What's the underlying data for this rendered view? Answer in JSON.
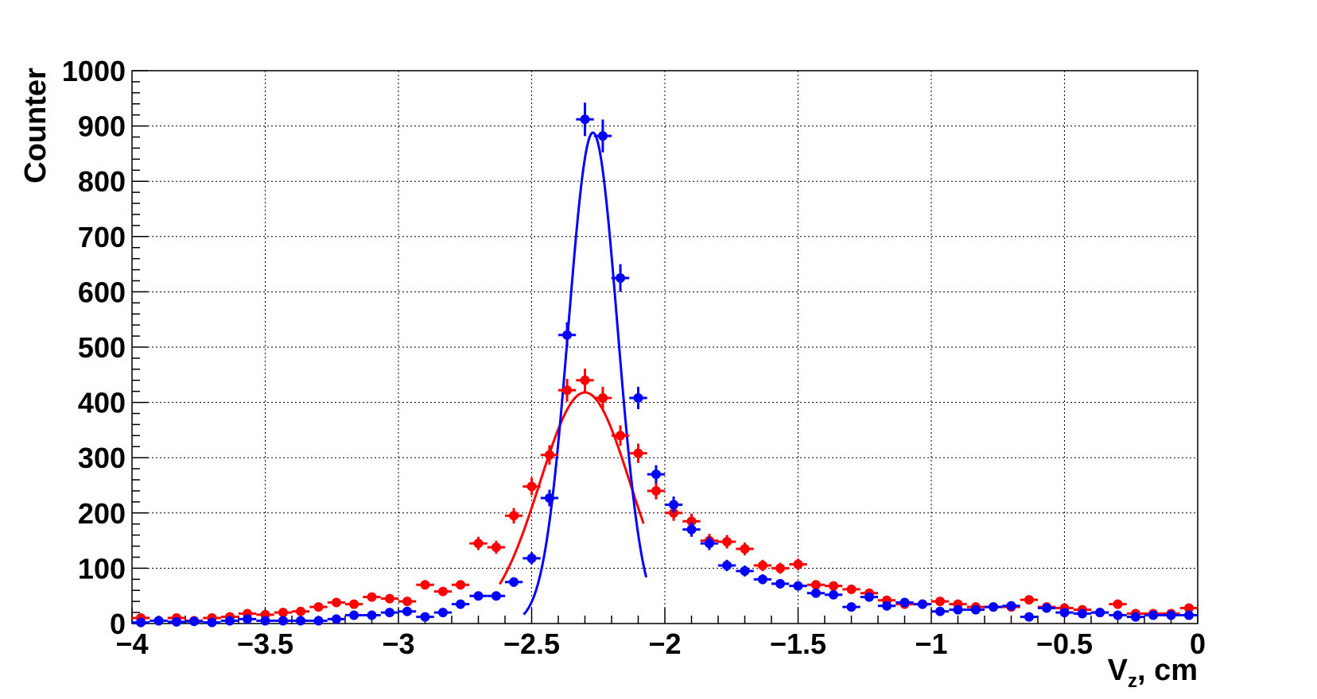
{
  "chart_data": {
    "type": "scatter",
    "title": "",
    "xlabel_main": "V",
    "xlabel_sub": "z",
    "xlabel_rest": ", cm",
    "ylabel": "Counter",
    "xlim": [
      -4,
      0
    ],
    "ylim": [
      0,
      1000
    ],
    "grid": true,
    "x_ticks": [
      -4,
      -3.5,
      -3,
      -2.5,
      -2,
      -1.5,
      -1,
      -0.5,
      0
    ],
    "x_tick_labels": [
      "−4",
      "−3.5",
      "−3",
      "−2.5",
      "−2",
      "−1.5",
      "−1",
      "−0.5",
      "0"
    ],
    "y_ticks": [
      0,
      100,
      200,
      300,
      400,
      500,
      600,
      700,
      800,
      900,
      1000
    ],
    "y_tick_labels": [
      "0",
      "100",
      "200",
      "300",
      "400",
      "500",
      "600",
      "700",
      "800",
      "900",
      "1000"
    ],
    "bin_width": 0.0667,
    "series": [
      {
        "color": "#ff0000",
        "x": [
          -3.967,
          -3.9,
          -3.833,
          -3.767,
          -3.7,
          -3.633,
          -3.567,
          -3.5,
          -3.433,
          -3.367,
          -3.3,
          -3.233,
          -3.167,
          -3.1,
          -3.033,
          -2.967,
          -2.9,
          -2.833,
          -2.767,
          -2.7,
          -2.633,
          -2.567,
          -2.5,
          -2.433,
          -2.367,
          -2.3,
          -2.233,
          -2.167,
          -2.1,
          -2.033,
          -1.967,
          -1.9,
          -1.833,
          -1.767,
          -1.7,
          -1.633,
          -1.567,
          -1.5,
          -1.433,
          -1.367,
          -1.3,
          -1.233,
          -1.167,
          -1.1,
          -1.033,
          -0.967,
          -0.9,
          -0.833,
          -0.767,
          -0.7,
          -0.633,
          -0.567,
          -0.5,
          -0.433,
          -0.367,
          -0.3,
          -0.233,
          -0.167,
          -0.1,
          -0.033
        ],
        "y": [
          10,
          5,
          10,
          5,
          10,
          12,
          18,
          16,
          20,
          22,
          30,
          38,
          35,
          48,
          45,
          40,
          70,
          58,
          70,
          145,
          138,
          195,
          248,
          305,
          422,
          440,
          408,
          340,
          308,
          240,
          200,
          185,
          150,
          148,
          135,
          105,
          100,
          107,
          70,
          68,
          62,
          55,
          42,
          35,
          35,
          40,
          35,
          30,
          30,
          30,
          43,
          30,
          28,
          25,
          20,
          35,
          18,
          18,
          18,
          28
        ],
        "fit": {
          "mean": -2.3,
          "sigma": 0.17,
          "amplitude": 418,
          "range": [
            -2.62,
            -2.08
          ]
        }
      },
      {
        "color": "#0000ff",
        "x": [
          -3.967,
          -3.9,
          -3.833,
          -3.767,
          -3.7,
          -3.633,
          -3.567,
          -3.5,
          -3.433,
          -3.367,
          -3.3,
          -3.233,
          -3.167,
          -3.1,
          -3.033,
          -2.967,
          -2.9,
          -2.833,
          -2.767,
          -2.7,
          -2.633,
          -2.567,
          -2.5,
          -2.433,
          -2.367,
          -2.3,
          -2.233,
          -2.167,
          -2.1,
          -2.033,
          -1.967,
          -1.9,
          -1.833,
          -1.767,
          -1.7,
          -1.633,
          -1.567,
          -1.5,
          -1.433,
          -1.367,
          -1.3,
          -1.233,
          -1.167,
          -1.1,
          -1.033,
          -0.967,
          -0.9,
          -0.833,
          -0.767,
          -0.7,
          -0.633,
          -0.567,
          -0.5,
          -0.433,
          -0.367,
          -0.3,
          -0.233,
          -0.167,
          -0.1,
          -0.033
        ],
        "y": [
          2,
          5,
          3,
          4,
          2,
          5,
          8,
          5,
          5,
          5,
          5,
          8,
          15,
          15,
          20,
          22,
          12,
          20,
          35,
          50,
          50,
          75,
          118,
          227,
          522,
          912,
          882,
          625,
          408,
          270,
          215,
          170,
          145,
          105,
          95,
          80,
          72,
          68,
          55,
          52,
          30,
          48,
          32,
          38,
          35,
          22,
          25,
          25,
          30,
          32,
          12,
          28,
          20,
          18,
          20,
          15,
          12,
          15,
          15,
          15
        ],
        "fit": {
          "mean": -2.27,
          "sigma": 0.092,
          "amplitude": 888,
          "range": [
            -2.53,
            -2.07
          ]
        }
      }
    ]
  }
}
